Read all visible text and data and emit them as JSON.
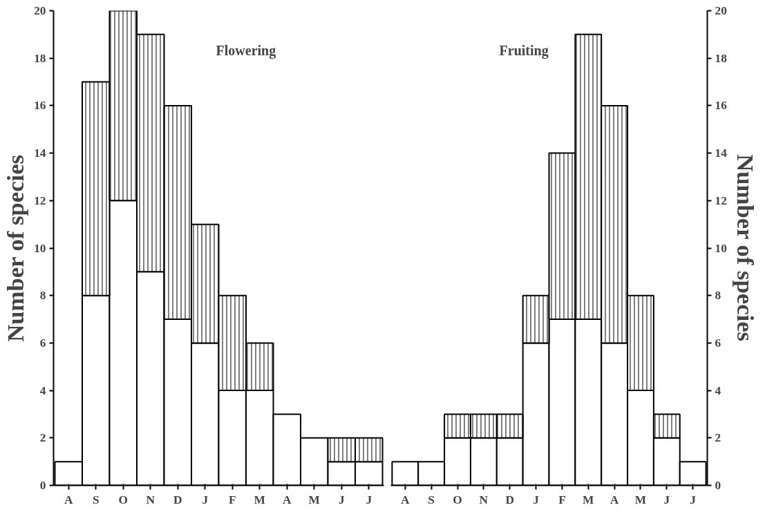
{
  "chart_data": [
    {
      "type": "bar",
      "title": "Flowering",
      "ylabel": "Number of species",
      "stacked": true,
      "categories": [
        "A",
        "S",
        "O",
        "N",
        "D",
        "J",
        "F",
        "M",
        "A",
        "M",
        "J",
        "J"
      ],
      "ylim": [
        0,
        20
      ],
      "yticks": [
        0,
        2,
        4,
        6,
        8,
        10,
        12,
        14,
        16,
        18,
        20
      ],
      "grid": false,
      "series": [
        {
          "color": "#ffffff",
          "values": [
            1,
            8,
            12,
            9,
            7,
            6,
            4,
            4,
            3,
            2,
            1,
            1
          ]
        },
        {
          "color": "#ffffff",
          "values": [
            null,
            9,
            8,
            10,
            9,
            5,
            4,
            2,
            null,
            null,
            1,
            1
          ]
        }
      ]
    },
    {
      "type": "bar",
      "title": "Fruiting",
      "y2label": "Number of species",
      "stacked": true,
      "categories": [
        "A",
        "S",
        "O",
        "N",
        "D",
        "J",
        "F",
        "M",
        "A",
        "M",
        "J",
        "J"
      ],
      "y2lim": [
        0,
        20
      ],
      "y2ticks": [
        0,
        2,
        4,
        6,
        8,
        10,
        12,
        14,
        16,
        18,
        20
      ],
      "grid": false,
      "series": [
        {
          "color": "#ffffff",
          "axis": "y2",
          "values": [
            1,
            1,
            2,
            2,
            2,
            6,
            7,
            7,
            6,
            4,
            2,
            1
          ]
        },
        {
          "color": "#ffffff",
          "axis": "y2",
          "values": [
            null,
            null,
            1,
            1,
            1,
            2,
            7,
            12,
            10,
            4,
            1,
            null
          ]
        }
      ]
    }
  ]
}
